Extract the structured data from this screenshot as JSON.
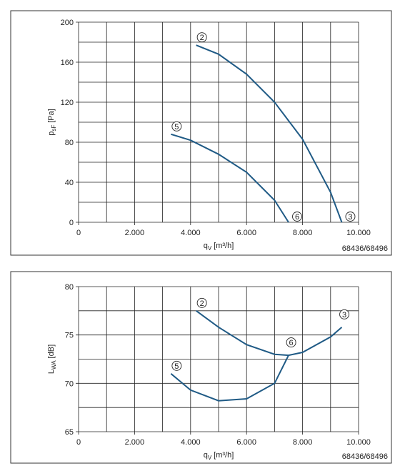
{
  "chart_data": [
    {
      "type": "line",
      "xlim": [
        0,
        10000
      ],
      "ylim": [
        0,
        200
      ],
      "xticks": [
        0,
        {
          "value": 2000,
          "label": "2.000"
        },
        {
          "value": 4000,
          "label": "4.000"
        },
        {
          "value": 6000,
          "label": "6.000"
        },
        {
          "value": 8000,
          "label": "8.000"
        },
        {
          "value": 10000,
          "label": "10.000"
        }
      ],
      "yticks": [
        0,
        40,
        80,
        120,
        160,
        200
      ],
      "xgrid": [
        1000,
        3000,
        5000,
        7000,
        9000
      ],
      "ygrid": [
        20,
        60,
        100,
        140,
        180
      ],
      "xlabel": {
        "main": "q",
        "sub": "V",
        "unit": "[m³/h]"
      },
      "ylabel": {
        "main": "p",
        "sub": "sF",
        "unit": "[Pa]"
      },
      "note": "68436/68496",
      "series": [
        {
          "color": "#1f5a85",
          "labels": [
            "2",
            "3"
          ],
          "x": [
            4200,
            5000,
            6000,
            7000,
            8000,
            9000,
            9400
          ],
          "values": [
            177,
            168,
            148,
            120,
            83,
            30,
            0
          ]
        },
        {
          "color": "#1f5a85",
          "labels": [
            "5",
            "6"
          ],
          "x": [
            3300,
            4000,
            5000,
            6000,
            7000,
            7500
          ],
          "values": [
            88,
            82,
            68,
            50,
            22,
            0
          ]
        }
      ]
    },
    {
      "type": "line",
      "xlim": [
        0,
        10000
      ],
      "ylim": [
        65,
        80
      ],
      "xticks": [
        0,
        {
          "value": 2000,
          "label": "2.000"
        },
        {
          "value": 4000,
          "label": "4.000"
        },
        {
          "value": 6000,
          "label": "6.000"
        },
        {
          "value": 8000,
          "label": "8.000"
        },
        {
          "value": 10000,
          "label": "10.000"
        }
      ],
      "yticks": [
        65,
        70,
        75,
        80
      ],
      "xgrid": [
        1000,
        3000,
        5000,
        7000,
        9000
      ],
      "ygrid": [
        67.5,
        72.5,
        77.5
      ],
      "xlabel": {
        "main": "q",
        "sub": "V",
        "unit": "[m³/h]"
      },
      "ylabel": {
        "main": "L",
        "sub": "WA",
        "unit": "[dB]"
      },
      "note": "68436/68496",
      "series": [
        {
          "color": "#1f5a85",
          "labels": [
            "2",
            "3"
          ],
          "x": [
            4200,
            5000,
            6000,
            7000,
            7500,
            8000,
            9000,
            9400
          ],
          "values": [
            77.5,
            75.8,
            74,
            73,
            72.9,
            73.2,
            74.8,
            75.8
          ]
        },
        {
          "color": "#1f5a85",
          "labels": [
            "5",
            "6"
          ],
          "x": [
            3300,
            4000,
            5000,
            6000,
            7000,
            7500
          ],
          "values": [
            71,
            69.3,
            68.2,
            68.4,
            70,
            72.9
          ]
        }
      ]
    }
  ]
}
